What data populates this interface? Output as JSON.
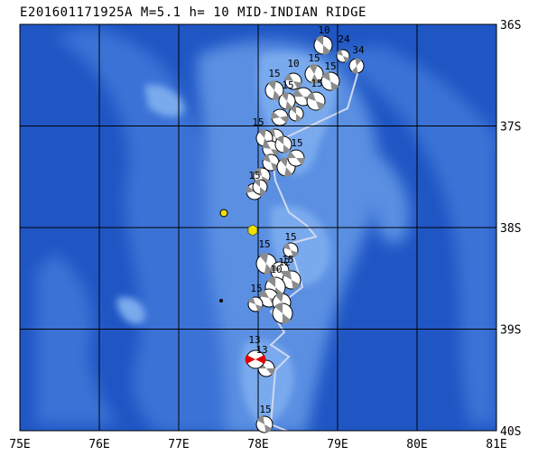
{
  "title": "E201601171925A M=5.1 h= 10 MID-INDIAN RIDGE",
  "map": {
    "lon_range": [
      75,
      81
    ],
    "lat_range": [
      -40,
      -36
    ],
    "lat_labels": [
      "36S",
      "37S",
      "38S",
      "39S",
      "40S"
    ],
    "lon_labels": [
      "75E",
      "76E",
      "77E",
      "78E",
      "79E",
      "80E",
      "81E"
    ],
    "colors": {
      "deep_ocean": "#1f56c4",
      "mid_ocean": "#3b72d6",
      "shallow": "#5a8fe2",
      "ridge_crest": "#7aaaee",
      "plate_boundary": "#d0d8f0",
      "grid": "#000000",
      "mechanism_fill": "#8c8c8c",
      "highlight": "#e00000",
      "volcano": "#f0e000"
    },
    "mechanism_labels": [
      "10",
      "24",
      "34",
      "15",
      "10",
      "15",
      "15",
      "15",
      "15",
      "15",
      "15",
      "15",
      "15",
      "15",
      "10",
      "15",
      "12",
      "15",
      "13",
      "13",
      "15"
    ]
  }
}
